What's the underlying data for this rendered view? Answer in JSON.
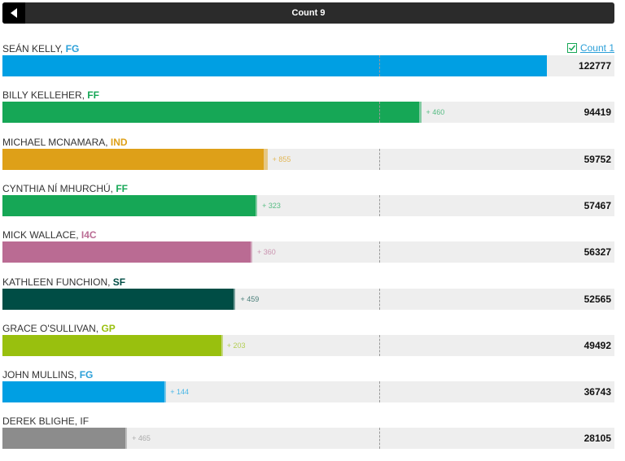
{
  "header": {
    "title": "Count 9",
    "back_icon": "chevron-left-icon"
  },
  "count_link": {
    "label": "Count 1",
    "icon": "checkbox-checked-icon",
    "color": "#2a9fd8"
  },
  "chart_data": {
    "type": "bar",
    "orientation": "horizontal",
    "stacked": true,
    "xlim": [
      0,
      138000
    ],
    "quota_marker": 85000,
    "series": [
      {
        "name": "",
        "values": [
          122777,
          93959,
          58897,
          57144,
          55967,
          52106,
          49289,
          36599,
          27640
        ]
      },
      {
        "name": "",
        "values": [
          0,
          460,
          855,
          323,
          360,
          459,
          203,
          144,
          465
        ]
      }
    ],
    "gain_labels": [
      "",
      "+ 460",
      "+ 855",
      "+ 323",
      "+ 360",
      "+ 459",
      "+ 203",
      "+ 144",
      "+ 465"
    ],
    "totals": [
      "122777",
      "94419",
      "59752",
      "57467",
      "56327",
      "52565",
      "49492",
      "36743",
      "28105"
    ],
    "categories": [
      {
        "name": "SEÁN KELLY, ",
        "party": "FG",
        "color": "#009fe3",
        "party_color": "#2a9fd8",
        "total": 122777,
        "gain": 0
      },
      {
        "name": "BILLY KELLEHER, ",
        "party": "FF",
        "color": "#16a756",
        "party_color": "#16a756",
        "total": 94419,
        "gain": 460
      },
      {
        "name": "MICHAEL MCNAMARA, ",
        "party": "IND",
        "color": "#dea018",
        "party_color": "#dea018",
        "total": 59752,
        "gain": 855
      },
      {
        "name": "CYNTHIA NÍ MHURCHÚ, ",
        "party": "FF",
        "color": "#16a756",
        "party_color": "#16a756",
        "total": 57467,
        "gain": 323
      },
      {
        "name": "MICK WALLACE, ",
        "party": "I4C",
        "color": "#ba6b93",
        "party_color": "#ba6b93",
        "total": 56327,
        "gain": 360
      },
      {
        "name": "KATHLEEN FUNCHION, ",
        "party": "SF",
        "color": "#004d45",
        "party_color": "#004d45",
        "total": 52565,
        "gain": 459
      },
      {
        "name": "GRACE O'SULLIVAN, ",
        "party": "GP",
        "color": "#99c00e",
        "party_color": "#99c00e",
        "total": 49492,
        "gain": 203
      },
      {
        "name": "JOHN MULLINS, ",
        "party": "FG",
        "color": "#009fe3",
        "party_color": "#2a9fd8",
        "total": 36743,
        "gain": 144
      },
      {
        "name": "DEREK BLIGHE, IF",
        "party": "",
        "color": "#8c8c8c",
        "party_color": "#8c8c8c",
        "total": 28105,
        "gain": 465
      }
    ]
  }
}
